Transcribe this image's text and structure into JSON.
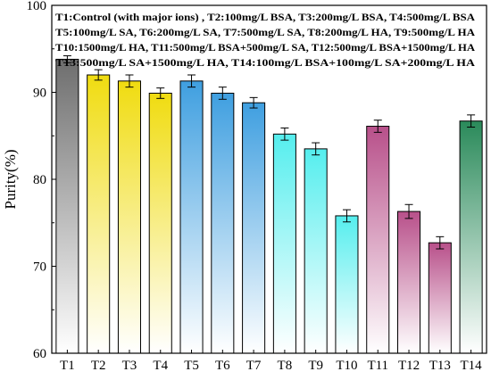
{
  "chart_data": {
    "type": "bar",
    "title": "",
    "xlabel": "",
    "ylabel": "Purity(%)",
    "ylim": [
      60,
      100
    ],
    "yticks": [
      60,
      70,
      80,
      90,
      100
    ],
    "grid": false,
    "legend_placement": "top",
    "categories": [
      "T1",
      "T2",
      "T3",
      "T4",
      "T5",
      "T6",
      "T7",
      "T8",
      "T9",
      "T10",
      "T11",
      "T12",
      "T13",
      "T14"
    ],
    "values": [
      93.8,
      92.0,
      91.3,
      89.9,
      91.3,
      89.9,
      88.8,
      85.2,
      83.5,
      75.8,
      86.1,
      76.3,
      72.7,
      86.7
    ],
    "errors": [
      0.4,
      0.6,
      0.7,
      0.6,
      0.7,
      0.7,
      0.6,
      0.7,
      0.7,
      0.7,
      0.7,
      0.8,
      0.7,
      0.7
    ],
    "colors": [
      "#6e6e6e",
      "#f0dc10",
      "#f0dc10",
      "#f0dc10",
      "#3f9fe0",
      "#3f9fe0",
      "#3f9fe0",
      "#55eeee",
      "#55eeee",
      "#55eeee",
      "#b8508a",
      "#b8508a",
      "#b8508a",
      "#2a8a5a"
    ],
    "annotation_lines": [
      "T1:Control (with major ions) , T2:100mg/L BSA, T3:200mg/L BSA, T4:500mg/L BSA",
      "T5:100mg/L SA, T6:200mg/L SA, T7:500mg/L SA, T8:200mg/L HA, T9:500mg/L HA",
      "T10:1500mg/L HA, T11:500mg/L BSA+500mg/L SA, T12:500mg/L BSA+1500mg/L HA",
      "T13:500mg/L SA+1500mg/L HA, T14:100mg/L BSA+100mg/L SA+200mg/L HA"
    ]
  }
}
